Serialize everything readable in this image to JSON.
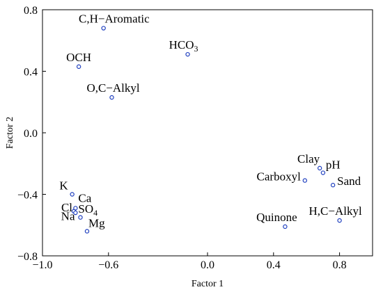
{
  "chart_data": {
    "type": "scatter",
    "title": "",
    "xlabel": "Factor 1",
    "ylabel": "Factor 2",
    "xlim": [
      -1.0,
      1.0
    ],
    "ylim": [
      -0.8,
      0.8
    ],
    "x_ticks": [
      -1.0,
      -0.6,
      0.0,
      0.4,
      0.8
    ],
    "x_tick_labels": [
      "−1.0",
      "−0.6",
      "0.0",
      "0.4",
      "0.8"
    ],
    "y_ticks": [
      0.8,
      0.4,
      0.0,
      -0.4,
      -0.8
    ],
    "y_tick_labels": [
      "0.8",
      "0.4",
      "0.0",
      "−0.4",
      "−0.8"
    ],
    "grid": false,
    "points": [
      {
        "label": "C,H−Aromatic",
        "x": -0.63,
        "y": 0.68,
        "anchor": "end",
        "dx": 66,
        "dy": -8
      },
      {
        "label": "HCO",
        "sub": "3",
        "x": -0.12,
        "y": 0.51,
        "anchor": "middle",
        "dx": -6,
        "dy": -8
      },
      {
        "label": "OCH",
        "x": -0.78,
        "y": 0.43,
        "anchor": "middle",
        "dx": 0,
        "dy": -8
      },
      {
        "label": "O,C−Alkyl",
        "x": -0.58,
        "y": 0.23,
        "anchor": "middle",
        "dx": 2,
        "dy": -8
      },
      {
        "label": "Clay",
        "x": 0.68,
        "y": -0.23,
        "anchor": "end",
        "dx": 0,
        "dy": -8
      },
      {
        "label": "pH",
        "x": 0.7,
        "y": -0.26,
        "anchor": "start",
        "dx": 4,
        "dy": -6
      },
      {
        "label": "Carboxyl",
        "x": 0.59,
        "y": -0.31,
        "anchor": "end",
        "dx": -6,
        "dy": 0
      },
      {
        "label": "Sand",
        "x": 0.76,
        "y": -0.34,
        "anchor": "start",
        "dx": 6,
        "dy": 0
      },
      {
        "label": "Quinone",
        "x": 0.47,
        "y": -0.61,
        "anchor": "middle",
        "dx": -12,
        "dy": -8
      },
      {
        "label": "H,C−Alkyl",
        "x": 0.8,
        "y": -0.57,
        "anchor": "middle",
        "dx": -6,
        "dy": -8
      },
      {
        "label": "K",
        "x": -0.82,
        "y": -0.4,
        "anchor": "end",
        "dx": -6,
        "dy": -7
      },
      {
        "label": "Ca",
        "x": -0.8,
        "y": -0.49,
        "anchor": "start",
        "dx": 4,
        "dy": -9
      },
      {
        "label": "Cl",
        "x": -0.81,
        "y": -0.51,
        "anchor": "end",
        "dx": -2,
        "dy": 0
      },
      {
        "label": "SO",
        "sub": "4",
        "x": -0.8,
        "y": -0.52,
        "anchor": "start",
        "dx": 4,
        "dy": 0
      },
      {
        "label": "Na",
        "x": -0.77,
        "y": -0.55,
        "anchor": "end",
        "dx": -8,
        "dy": 4
      },
      {
        "label": "Mg",
        "x": -0.73,
        "y": -0.64,
        "anchor": "start",
        "dx": 2,
        "dy": -6
      }
    ]
  }
}
